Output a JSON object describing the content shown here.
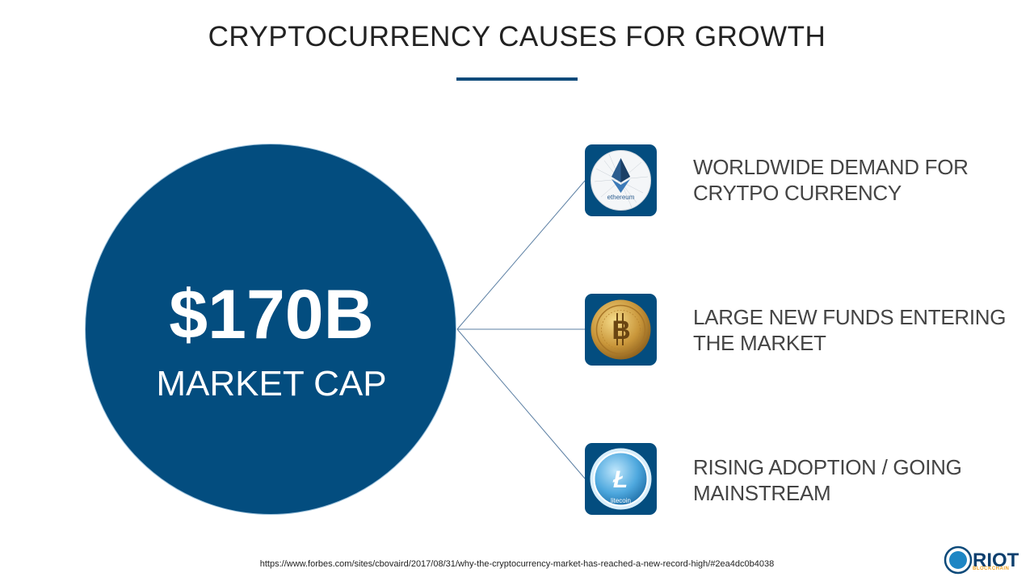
{
  "slide": {
    "title": "CRYPTOCURRENCY CAUSES FOR GROWTH",
    "accent_color": "#034d7f",
    "stat": {
      "value": "$170B",
      "label": "MARKET CAP"
    },
    "causes": [
      {
        "icon": "ethereum-icon",
        "icon_text": "ethereum",
        "text": "WORLDWIDE DEMAND FOR CRYTPO CURRENCY"
      },
      {
        "icon": "bitcoin-icon",
        "icon_text": "",
        "text": "LARGE NEW FUNDS ENTERING THE MARKET"
      },
      {
        "icon": "litecoin-icon",
        "icon_text": "litecoin",
        "text": "RISING ADOPTION / GOING MAINSTREAM"
      }
    ],
    "source": "https://www.forbes.com/sites/cbovaird/2017/08/31/why-the-cryptocurrency-market-has-reached-a-new-record-high/#2ea4dc0b4038",
    "logo": {
      "text": "RIOT",
      "subtext": "BLOCKCHAIN"
    }
  }
}
